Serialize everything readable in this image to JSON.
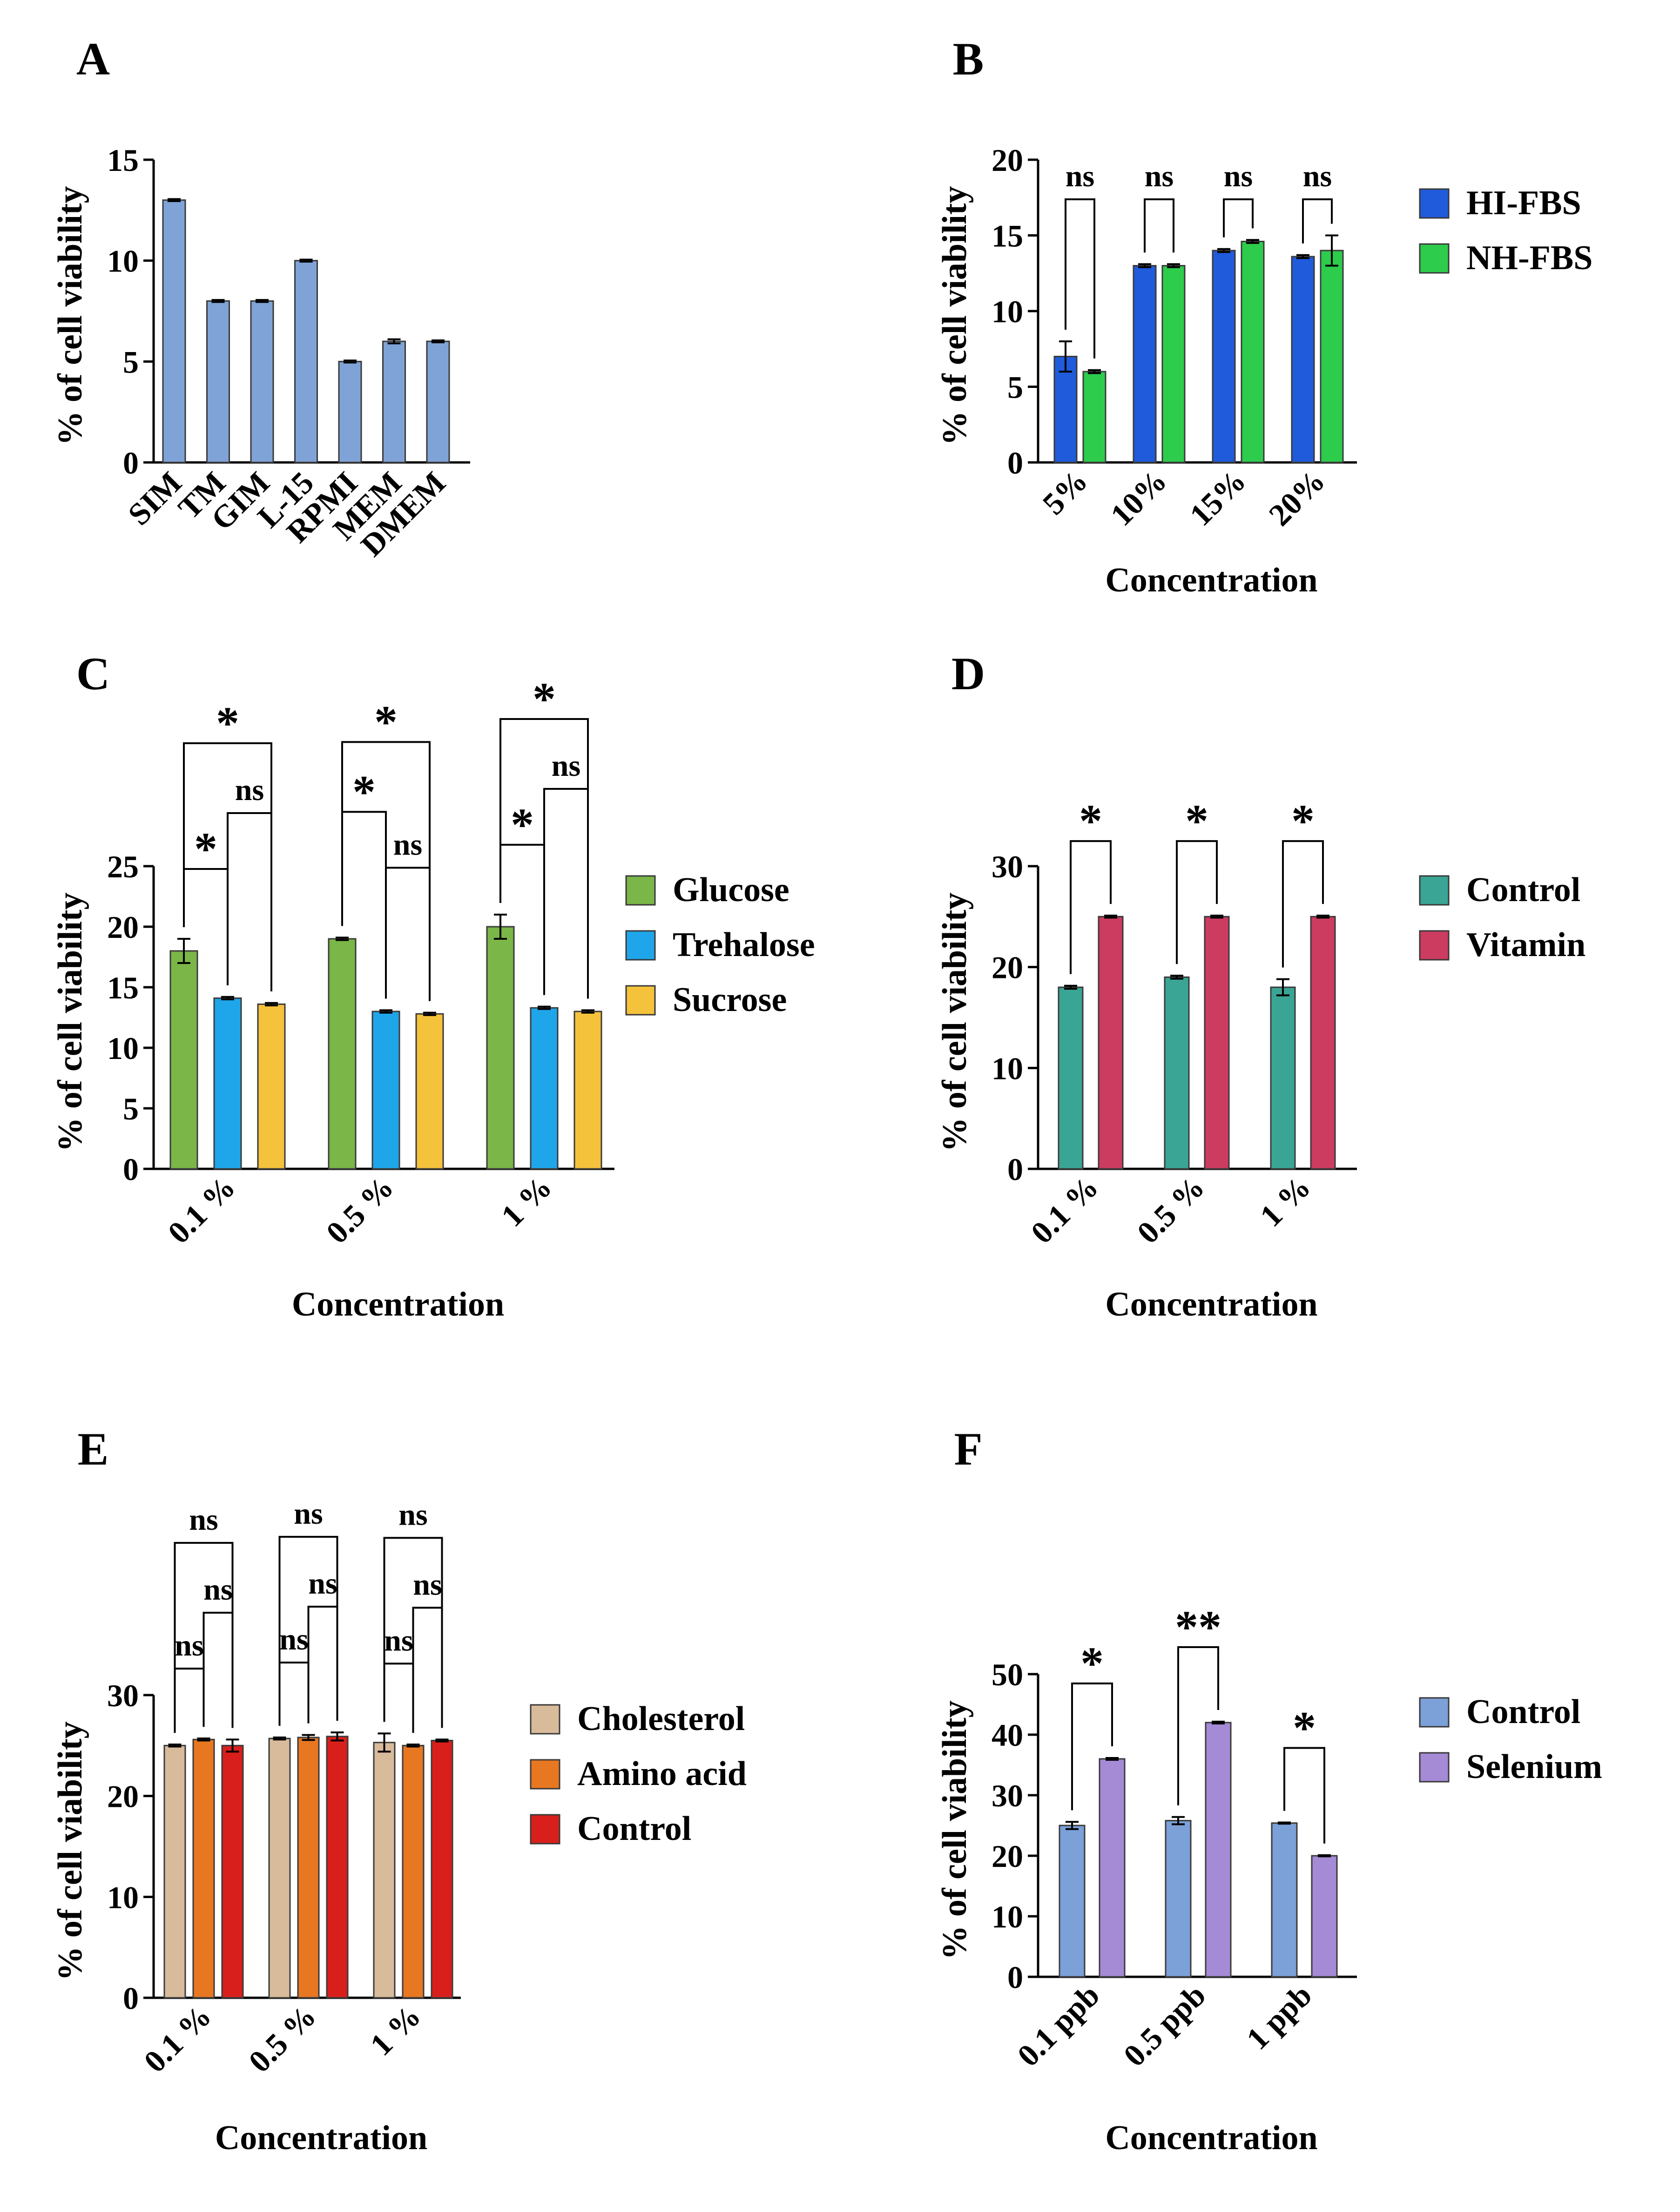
{
  "chart_data": [
    {
      "panel": "A",
      "type": "bar",
      "categories": [
        "SIM",
        "TM",
        "GIM",
        "L-15",
        "RPMI",
        "MEM",
        "DMEM"
      ],
      "series": [
        {
          "values": [
            13,
            8,
            8,
            10,
            5,
            6,
            6
          ],
          "errors": [
            0.05,
            0.05,
            0.05,
            0.05,
            0.05,
            0.1,
            0.05
          ],
          "color": "#7fa3d6"
        }
      ],
      "xlabel": "",
      "ylabel": "% of cell viability",
      "ylim": [
        0,
        15
      ],
      "yticks": [
        0,
        5,
        10,
        15
      ],
      "legend": null,
      "comparisons": []
    },
    {
      "panel": "B",
      "type": "bar",
      "categories": [
        "5%",
        "10%",
        "15%",
        "20%"
      ],
      "series": [
        {
          "name": "HI-FBS",
          "values": [
            7,
            13,
            14,
            13.6
          ],
          "errors": [
            1,
            0.1,
            0.1,
            0.1
          ],
          "color": "#1f5bdb"
        },
        {
          "name": "NH-FBS",
          "values": [
            6,
            13,
            14.6,
            14
          ],
          "errors": [
            0.1,
            0.1,
            0.1,
            1
          ],
          "color": "#2dcc4d"
        }
      ],
      "xlabel": "Concentration",
      "ylabel": "% of cell viability",
      "ylim": [
        0,
        20
      ],
      "yticks": [
        0,
        5,
        10,
        15,
        20
      ],
      "legend": "right",
      "comparisons": [
        {
          "group": 0,
          "from": 0,
          "to": 1,
          "label": "ns"
        },
        {
          "group": 1,
          "from": 0,
          "to": 1,
          "label": "ns"
        },
        {
          "group": 2,
          "from": 0,
          "to": 1,
          "label": "ns"
        },
        {
          "group": 3,
          "from": 0,
          "to": 1,
          "label": "ns"
        }
      ]
    },
    {
      "panel": "C",
      "type": "bar",
      "categories": [
        "0.1 %",
        "0.5 %",
        "1 %"
      ],
      "series": [
        {
          "name": "Glucose",
          "values": [
            18,
            19,
            20
          ],
          "errors": [
            1,
            0.1,
            1
          ],
          "color": "#7ab648"
        },
        {
          "name": "Trehalose",
          "values": [
            14.1,
            13,
            13.3
          ],
          "errors": [
            0.1,
            0.1,
            0.1
          ],
          "color": "#1fa6ea"
        },
        {
          "name": "Sucrose",
          "values": [
            13.6,
            12.8,
            13
          ],
          "errors": [
            0.1,
            0.1,
            0.1
          ],
          "color": "#f5c23c"
        }
      ],
      "xlabel": "Concentration",
      "ylabel": "% of cell viability",
      "ylim": [
        0,
        25
      ],
      "yticks": [
        0,
        5,
        10,
        15,
        20,
        25
      ],
      "legend": "right",
      "comparisons": [
        {
          "group": 0,
          "from": 0,
          "to": 1,
          "label": "*"
        },
        {
          "group": 0,
          "from": 1,
          "to": 2,
          "label": "ns"
        },
        {
          "group": 0,
          "from": 0,
          "to": 2,
          "label": "*"
        },
        {
          "group": 1,
          "from": 1,
          "to": 2,
          "label": "ns"
        },
        {
          "group": 1,
          "from": 0,
          "to": 1,
          "label": "*"
        },
        {
          "group": 1,
          "from": 0,
          "to": 2,
          "label": "*"
        },
        {
          "group": 2,
          "from": 0,
          "to": 1,
          "label": "*"
        },
        {
          "group": 2,
          "from": 1,
          "to": 2,
          "label": "ns"
        },
        {
          "group": 2,
          "from": 0,
          "to": 2,
          "label": "*"
        }
      ]
    },
    {
      "panel": "D",
      "type": "bar",
      "categories": [
        "0.1 %",
        "0.5 %",
        "1 %"
      ],
      "series": [
        {
          "name": "Control",
          "values": [
            18,
            19,
            18
          ],
          "errors": [
            0.15,
            0.15,
            0.8
          ],
          "color": "#3aa594"
        },
        {
          "name": "Vitamin",
          "values": [
            25,
            25,
            25
          ],
          "errors": [
            0.1,
            0.1,
            0.1
          ],
          "color": "#cc3b60"
        }
      ],
      "xlabel": "Concentration",
      "ylabel": "% of cell viability",
      "ylim": [
        0,
        30
      ],
      "yticks": [
        0,
        10,
        20,
        30
      ],
      "legend": "right",
      "comparisons": [
        {
          "group": 0,
          "from": 0,
          "to": 1,
          "label": "*"
        },
        {
          "group": 1,
          "from": 0,
          "to": 1,
          "label": "*"
        },
        {
          "group": 2,
          "from": 0,
          "to": 1,
          "label": "*"
        }
      ]
    },
    {
      "panel": "E",
      "type": "bar",
      "categories": [
        "0.1 %",
        "0.5 %",
        "1 %"
      ],
      "series": [
        {
          "name": "Cholesterol",
          "values": [
            25,
            25.7,
            25.3
          ],
          "errors": [
            0.1,
            0.1,
            0.9
          ],
          "color": "#d8bb9b"
        },
        {
          "name": "Amino acid",
          "values": [
            25.6,
            25.8,
            25
          ],
          "errors": [
            0.1,
            0.25,
            0.1
          ],
          "color": "#e87722"
        },
        {
          "name": "Control",
          "values": [
            25,
            25.9,
            25.5
          ],
          "errors": [
            0.6,
            0.4,
            0.1
          ],
          "color": "#d91f1b"
        }
      ],
      "xlabel": "Concentration",
      "ylabel": "% of cell viability",
      "ylim": [
        0,
        30
      ],
      "yticks": [
        0,
        10,
        20,
        30
      ],
      "legend": "right",
      "comparisons": [
        {
          "group": 0,
          "from": 0,
          "to": 1,
          "label": "ns"
        },
        {
          "group": 0,
          "from": 1,
          "to": 2,
          "label": "ns"
        },
        {
          "group": 0,
          "from": 0,
          "to": 2,
          "label": "ns"
        },
        {
          "group": 1,
          "from": 1,
          "to": 2,
          "label": "ns"
        },
        {
          "group": 1,
          "from": 0,
          "to": 1,
          "label": "ns"
        },
        {
          "group": 1,
          "from": 0,
          "to": 2,
          "label": "ns"
        },
        {
          "group": 2,
          "from": 0,
          "to": 1,
          "label": "ns"
        },
        {
          "group": 2,
          "from": 1,
          "to": 2,
          "label": "ns"
        },
        {
          "group": 2,
          "from": 0,
          "to": 2,
          "label": "ns"
        }
      ]
    },
    {
      "panel": "F",
      "type": "bar",
      "categories": [
        "0.1 ppb",
        "0.5 ppb",
        "1 ppb"
      ],
      "series": [
        {
          "name": "Control",
          "values": [
            25,
            25.8,
            25.4
          ],
          "errors": [
            0.6,
            0.6,
            0.1
          ],
          "color": "#7ca0d8"
        },
        {
          "name": "Selenium",
          "values": [
            36,
            42,
            20
          ],
          "errors": [
            0.15,
            0.15,
            0.1
          ],
          "color": "#a58ad6"
        }
      ],
      "xlabel": "Concentration",
      "ylabel": "% of cell viability",
      "ylim": [
        0,
        50
      ],
      "yticks": [
        0,
        10,
        20,
        30,
        40,
        50
      ],
      "legend": "right",
      "comparisons": [
        {
          "group": 0,
          "from": 0,
          "to": 1,
          "label": "*"
        },
        {
          "group": 1,
          "from": 0,
          "to": 1,
          "label": "**"
        },
        {
          "group": 2,
          "from": 0,
          "to": 1,
          "label": "*"
        }
      ]
    }
  ]
}
